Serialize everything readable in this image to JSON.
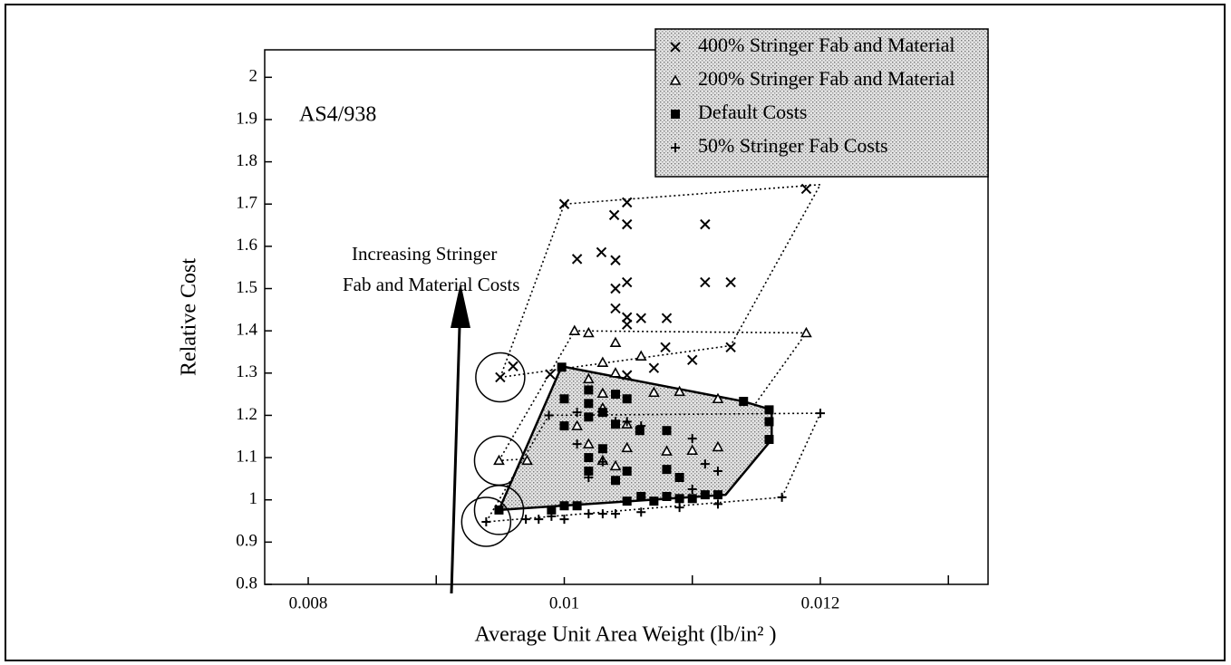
{
  "chart_data": {
    "type": "scatter",
    "annotations": [
      "AS4/938",
      "Increasing Stringer",
      "Fab and Material Costs"
    ],
    "xlabel": "Average Unit Area Weight (lb/in² )",
    "ylabel": "Relative Cost",
    "xlim": [
      0.00766,
      0.01331
    ],
    "ylim": [
      0.8,
      2.065
    ],
    "xticks": [
      0.008,
      0.01,
      0.012
    ],
    "xminor_ticks": [
      0.009,
      0.011,
      0.013
    ],
    "yticks": [
      0.8,
      0.9,
      1,
      1.1,
      1.2,
      1.3,
      1.4,
      1.5,
      1.6,
      1.7,
      1.8,
      1.9,
      2
    ],
    "legend": "upper right",
    "series": [
      {
        "name": "400% Stringer Fab and Material",
        "color": "#000000",
        "marker": "x",
        "x": [
          0.0095,
          0.0096,
          0.00989,
          0.01,
          0.0101,
          0.01029,
          0.01039,
          0.01049,
          0.01049,
          0.0104,
          0.01049,
          0.0104,
          0.0104,
          0.01049,
          0.01049,
          0.01049,
          0.0106,
          0.01079,
          0.0108,
          0.0107,
          0.011,
          0.0111,
          0.0111,
          0.0113,
          0.0113,
          0.01189
        ],
        "values": [
          1.29,
          1.316,
          1.297,
          1.7,
          1.57,
          1.586,
          1.674,
          1.704,
          1.652,
          1.567,
          1.515,
          1.5,
          1.453,
          1.432,
          1.415,
          1.295,
          1.43,
          1.361,
          1.43,
          1.312,
          1.331,
          1.652,
          1.515,
          1.515,
          1.361,
          1.736
        ]
      },
      {
        "name": "200% Stringer Fab and Material",
        "color": "#000000",
        "marker": "triangle",
        "x": [
          0.00949,
          0.00971,
          0.01008,
          0.01019,
          0.0104,
          0.0103,
          0.0106,
          0.01019,
          0.0104,
          0.0103,
          0.0103,
          0.01049,
          0.01049,
          0.0101,
          0.01019,
          0.0107,
          0.0109,
          0.0108,
          0.011,
          0.0112,
          0.0112,
          0.01189,
          0.0103,
          0.0104
        ],
        "values": [
          1.093,
          1.093,
          1.4,
          1.395,
          1.372,
          1.325,
          1.34,
          1.286,
          1.3,
          1.252,
          1.217,
          1.179,
          1.123,
          1.175,
          1.132,
          1.254,
          1.256,
          1.115,
          1.117,
          1.125,
          1.239,
          1.395,
          1.093,
          1.08
        ]
      },
      {
        "name": "Default Costs",
        "color": "#000000",
        "marker": "square",
        "x": [
          0.00949,
          0.0099,
          0.0101,
          0.01,
          0.00998,
          0.01,
          0.01,
          0.01019,
          0.01019,
          0.01019,
          0.01019,
          0.01019,
          0.0104,
          0.0104,
          0.01049,
          0.01049,
          0.0104,
          0.01049,
          0.0106,
          0.0107,
          0.0108,
          0.0109,
          0.011,
          0.0111,
          0.0112,
          0.0108,
          0.0109,
          0.0108,
          0.01059,
          0.0114,
          0.0116,
          0.0116,
          0.0116,
          0.0103,
          0.0103
        ],
        "values": [
          0.976,
          0.976,
          0.986,
          0.986,
          1.314,
          1.175,
          1.239,
          1.26,
          1.228,
          1.196,
          1.1,
          1.068,
          1.25,
          1.179,
          1.239,
          1.068,
          1.046,
          0.997,
          1.008,
          0.997,
          1.008,
          1.003,
          1.003,
          1.012,
          1.012,
          1.072,
          1.053,
          1.164,
          1.164,
          1.233,
          1.213,
          1.185,
          1.143,
          1.121,
          1.207
        ]
      },
      {
        "name": "50% Stringer Fab Costs",
        "color": "#000000",
        "marker": "plus",
        "x": [
          0.00939,
          0.0097,
          0.0098,
          0.0099,
          0.01,
          0.01019,
          0.0103,
          0.0104,
          0.0106,
          0.0109,
          0.0112,
          0.0117,
          0.012,
          0.00988,
          0.0101,
          0.0101,
          0.01019,
          0.0103,
          0.0104,
          0.01049,
          0.0106,
          0.011,
          0.0111,
          0.0112,
          0.011
        ],
        "values": [
          0.948,
          0.954,
          0.954,
          0.961,
          0.954,
          0.967,
          0.967,
          0.967,
          0.971,
          0.982,
          0.99,
          1.006,
          1.205,
          1.2,
          1.207,
          1.132,
          1.053,
          1.09,
          1.185,
          1.185,
          1.175,
          1.145,
          1.085,
          1.068,
          1.025
        ]
      }
    ],
    "regions": [
      {
        "style": "dotted",
        "x": [
          0.0095,
          0.01,
          0.012,
          0.0113
        ],
        "y": [
          1.29,
          1.7,
          1.746,
          1.365
        ]
      },
      {
        "style": "dotted",
        "x": [
          0.00949,
          0.01008,
          0.01189,
          0.01125
        ],
        "y": [
          1.093,
          1.4,
          1.395,
          1.125
        ]
      },
      {
        "style": "shaded",
        "x": [
          0.00949,
          0.00998,
          0.0114,
          0.01162,
          0.01162,
          0.01126
        ],
        "y": [
          0.976,
          1.316,
          1.233,
          1.213,
          1.143,
          1.012
        ]
      },
      {
        "style": "dotted",
        "x": [
          0.00939,
          0.00988,
          0.012,
          0.0117
        ],
        "y": [
          0.948,
          1.2,
          1.205,
          1.006
        ]
      }
    ]
  }
}
